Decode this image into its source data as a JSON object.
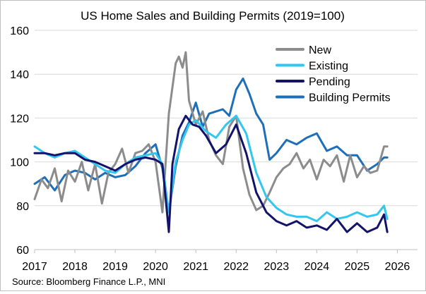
{
  "chart_data": {
    "type": "line",
    "title": "US Home Sales and Building Permits (2019=100)",
    "xlabel": "",
    "ylabel": "",
    "xlim": [
      2017.0,
      2026.5
    ],
    "ylim": [
      60,
      160
    ],
    "x_ticks": [
      "2017",
      "2018",
      "2019",
      "2020",
      "2021",
      "2022",
      "2023",
      "2024",
      "2025",
      "2026"
    ],
    "y_ticks": [
      "60",
      "80",
      "100",
      "120",
      "140",
      "160"
    ],
    "grid": "horizontal",
    "legend_position": "top-right",
    "source": "Source: Bloomberg Finance L.P., MNI",
    "series": [
      {
        "name": "New",
        "color": "#8c8c8c",
        "x": [
          2017.0,
          2017.17,
          2017.33,
          2017.5,
          2017.67,
          2017.83,
          2018.0,
          2018.17,
          2018.33,
          2018.5,
          2018.67,
          2018.83,
          2019.0,
          2019.17,
          2019.33,
          2019.5,
          2019.67,
          2019.83,
          2020.0,
          2020.17,
          2020.33,
          2020.5,
          2020.58,
          2020.67,
          2020.75,
          2020.83,
          2021.0,
          2021.17,
          2021.33,
          2021.5,
          2021.67,
          2021.83,
          2022.0,
          2022.17,
          2022.33,
          2022.5,
          2022.67,
          2022.83,
          2023.0,
          2023.17,
          2023.33,
          2023.5,
          2023.67,
          2023.83,
          2024.0,
          2024.17,
          2024.33,
          2024.5,
          2024.67,
          2024.83,
          2025.0,
          2025.17,
          2025.33,
          2025.5,
          2025.67,
          2025.75
        ],
        "values": [
          83,
          92,
          88,
          97,
          82,
          96,
          91,
          100,
          87,
          99,
          81,
          95,
          99,
          106,
          95,
          104,
          105,
          108,
          100,
          77,
          122,
          145,
          148,
          143,
          150,
          128,
          117,
          123,
          110,
          103,
          99,
          116,
          121,
          97,
          85,
          78,
          80,
          86,
          93,
          97,
          99,
          104,
          97,
          101,
          92,
          101,
          98,
          103,
          91,
          103,
          93,
          98,
          95,
          96,
          107,
          107
        ]
      },
      {
        "name": "Existing",
        "color": "#33c6ee",
        "x": [
          2017.0,
          2017.25,
          2017.5,
          2017.75,
          2018.0,
          2018.25,
          2018.5,
          2018.75,
          2019.0,
          2019.25,
          2019.5,
          2019.75,
          2020.0,
          2020.17,
          2020.33,
          2020.5,
          2020.67,
          2020.83,
          2021.0,
          2021.25,
          2021.5,
          2021.75,
          2022.0,
          2022.25,
          2022.5,
          2022.75,
          2023.0,
          2023.25,
          2023.5,
          2023.75,
          2024.0,
          2024.25,
          2024.5,
          2024.75,
          2025.0,
          2025.25,
          2025.5,
          2025.67,
          2025.75
        ],
        "values": [
          107,
          104,
          102,
          104,
          105,
          102,
          99,
          96,
          95,
          99,
          102,
          103,
          104,
          99,
          77,
          100,
          110,
          117,
          119,
          114,
          111,
          117,
          121,
          113,
          95,
          84,
          79,
          76,
          75,
          75,
          73,
          77,
          74,
          75,
          77,
          75,
          76,
          80,
          74
        ]
      },
      {
        "name": "Pending",
        "color": "#13136b",
        "x": [
          2017.0,
          2017.25,
          2017.5,
          2017.75,
          2018.0,
          2018.25,
          2018.5,
          2018.75,
          2019.0,
          2019.25,
          2019.5,
          2019.75,
          2020.0,
          2020.17,
          2020.33,
          2020.42,
          2020.58,
          2020.75,
          2020.92,
          2021.08,
          2021.25,
          2021.5,
          2021.75,
          2022.0,
          2022.25,
          2022.5,
          2022.75,
          2023.0,
          2023.25,
          2023.5,
          2023.75,
          2024.0,
          2024.25,
          2024.5,
          2024.75,
          2025.0,
          2025.25,
          2025.5,
          2025.67,
          2025.75
        ],
        "values": [
          104,
          104,
          103,
          104,
          104,
          101,
          100,
          98,
          96,
          99,
          101,
          102,
          101,
          99,
          68,
          99,
          115,
          121,
          117,
          116,
          112,
          104,
          108,
          117,
          104,
          86,
          77,
          73,
          71,
          73,
          70,
          71,
          69,
          74,
          68,
          72,
          68,
          70,
          76,
          68
        ]
      },
      {
        "name": "Building Permits",
        "color": "#1f6fb8",
        "x": [
          2017.0,
          2017.25,
          2017.5,
          2017.75,
          2018.0,
          2018.25,
          2018.5,
          2018.75,
          2019.0,
          2019.25,
          2019.5,
          2019.75,
          2020.0,
          2020.17,
          2020.33,
          2020.5,
          2020.67,
          2020.83,
          2021.0,
          2021.17,
          2021.33,
          2021.5,
          2021.67,
          2021.83,
          2022.0,
          2022.17,
          2022.33,
          2022.5,
          2022.67,
          2022.83,
          2023.0,
          2023.25,
          2023.5,
          2023.75,
          2024.0,
          2024.25,
          2024.5,
          2024.75,
          2025.0,
          2025.25,
          2025.5,
          2025.67,
          2025.75
        ],
        "values": [
          90,
          93,
          87,
          94,
          96,
          95,
          92,
          95,
          93,
          94,
          98,
          104,
          108,
          97,
          77,
          98,
          112,
          118,
          127,
          116,
          122,
          123,
          124,
          121,
          133,
          138,
          131,
          122,
          117,
          101,
          104,
          110,
          108,
          111,
          113,
          105,
          107,
          103,
          103,
          96,
          99,
          102,
          102
        ]
      }
    ]
  }
}
